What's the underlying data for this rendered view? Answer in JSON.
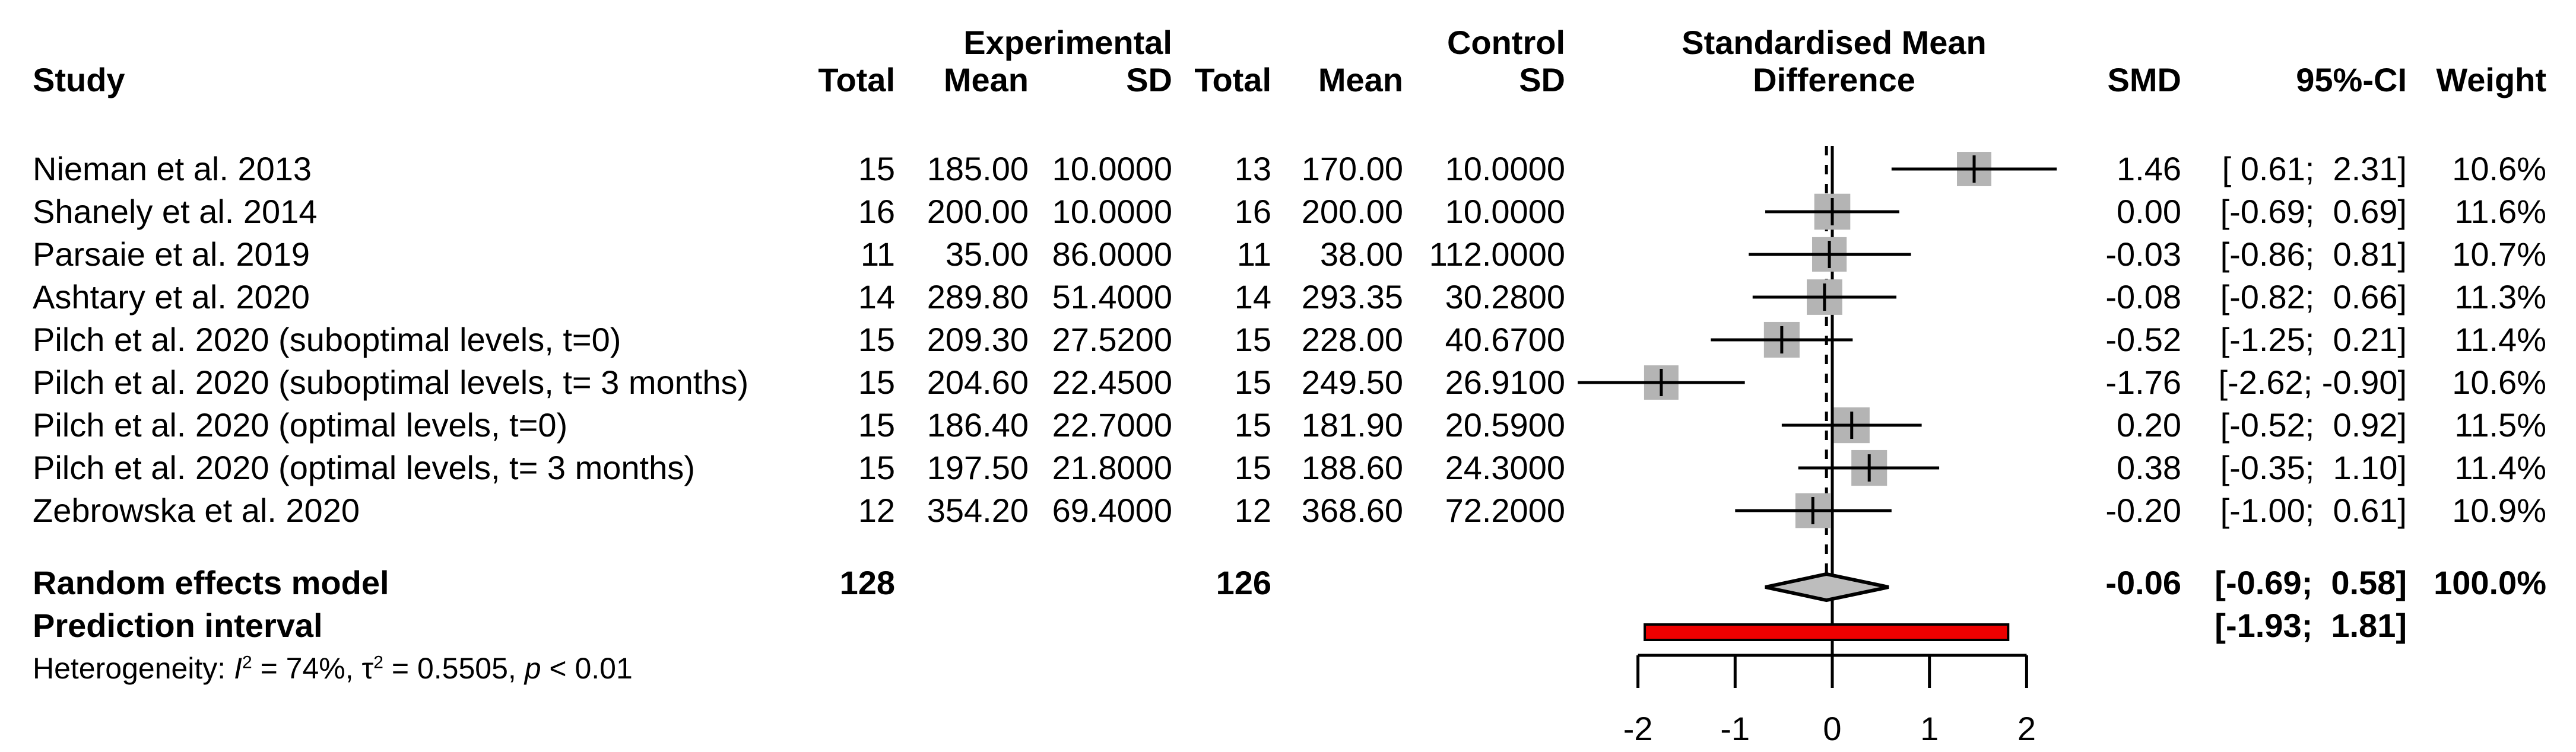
{
  "header": {
    "study": "Study",
    "experimental": "Experimental",
    "control": "Control",
    "exp_total": "Total",
    "exp_mean": "Mean",
    "exp_sd": "SD",
    "ctrl_total": "Total",
    "ctrl_mean": "Mean",
    "ctrl_sd": "SD",
    "plot_title_line1": "Standardised Mean",
    "plot_title_line2": "Difference",
    "smd": "SMD",
    "ci": "95%-CI",
    "weight": "Weight"
  },
  "studies": [
    {
      "name": "Nieman et al. 2013",
      "e_total": "15",
      "e_mean": "185.00",
      "e_sd": "10.0000",
      "c_total": "13",
      "c_mean": "170.00",
      "c_sd": "10.0000",
      "smd": "1.46",
      "ci": "[ 0.61;  2.31]",
      "weight": "10.6%"
    },
    {
      "name": "Shanely et al. 2014",
      "e_total": "16",
      "e_mean": "200.00",
      "e_sd": "10.0000",
      "c_total": "16",
      "c_mean": "200.00",
      "c_sd": "10.0000",
      "smd": "0.00",
      "ci": "[-0.69;  0.69]",
      "weight": "11.6%"
    },
    {
      "name": "Parsaie et al. 2019",
      "e_total": "11",
      "e_mean": "35.00",
      "e_sd": "86.0000",
      "c_total": "11",
      "c_mean": "38.00",
      "c_sd": "112.0000",
      "smd": "-0.03",
      "ci": "[-0.86;  0.81]",
      "weight": "10.7%"
    },
    {
      "name": "Ashtary et al. 2020",
      "e_total": "14",
      "e_mean": "289.80",
      "e_sd": "51.4000",
      "c_total": "14",
      "c_mean": "293.35",
      "c_sd": "30.2800",
      "smd": "-0.08",
      "ci": "[-0.82;  0.66]",
      "weight": "11.3%"
    },
    {
      "name": "Pilch et al. 2020 (suboptimal levels, t=0)",
      "e_total": "15",
      "e_mean": "209.30",
      "e_sd": "27.5200",
      "c_total": "15",
      "c_mean": "228.00",
      "c_sd": "40.6700",
      "smd": "-0.52",
      "ci": "[-1.25;  0.21]",
      "weight": "11.4%"
    },
    {
      "name": "Pilch et al. 2020 (suboptimal levels, t= 3 months)",
      "e_total": "15",
      "e_mean": "204.60",
      "e_sd": "22.4500",
      "c_total": "15",
      "c_mean": "249.50",
      "c_sd": "26.9100",
      "smd": "-1.76",
      "ci": "[-2.62; -0.90]",
      "weight": "10.6%"
    },
    {
      "name": "Pilch et al. 2020 (optimal levels, t=0)",
      "e_total": "15",
      "e_mean": "186.40",
      "e_sd": "22.7000",
      "c_total": "15",
      "c_mean": "181.90",
      "c_sd": "20.5900",
      "smd": "0.20",
      "ci": "[-0.52;  0.92]",
      "weight": "11.5%"
    },
    {
      "name": "Pilch et al. 2020 (optimal levels, t= 3 months)",
      "e_total": "15",
      "e_mean": "197.50",
      "e_sd": "21.8000",
      "c_total": "15",
      "c_mean": "188.60",
      "c_sd": "24.3000",
      "smd": "0.38",
      "ci": "[-0.35;  1.10]",
      "weight": "11.4%"
    },
    {
      "name": "Zebrowska et al. 2020",
      "e_total": "12",
      "e_mean": "354.20",
      "e_sd": "69.4000",
      "c_total": "12",
      "c_mean": "368.60",
      "c_sd": "72.2000",
      "smd": "-0.20",
      "ci": "[-1.00;  0.61]",
      "weight": "10.9%"
    }
  ],
  "summary": {
    "random_label": "Random effects model",
    "random_e_total": "128",
    "random_c_total": "126",
    "random_smd": "-0.06",
    "random_ci": "[-0.69;  0.58]",
    "random_weight": "100.0%",
    "prediction_label": "Prediction interval",
    "prediction_ci": "[-1.93;  1.81]",
    "heterogeneity_parts": [
      {
        "t": "Heterogeneity: "
      },
      {
        "t": "I",
        "s": "i"
      },
      {
        "t": "2",
        "s": "sup"
      },
      {
        "t": " = 74%, "
      },
      {
        "t": "τ"
      },
      {
        "t": "2",
        "s": "sup"
      },
      {
        "t": " = 0.5505, "
      },
      {
        "t": "p",
        "s": "i"
      },
      {
        "t": " < 0.01"
      }
    ]
  },
  "colors": {
    "square": "#b4b4b4",
    "diamond_fill": "#bdbdbd",
    "prediction_bar": "#ee0000",
    "line": "#000000"
  },
  "chart_data": {
    "type": "forest",
    "title": "Standardised Mean Difference",
    "x_axis": {
      "tick_vals": [
        -2,
        -1,
        0,
        1,
        2
      ],
      "tick_labels": [
        "-2",
        "-1",
        "0",
        "1",
        "2"
      ],
      "reference_line": 0,
      "random_effects_line": -0.06
    },
    "studies": [
      {
        "label": "Nieman et al. 2013",
        "n_exp": 15,
        "mean_exp": 185.0,
        "sd_exp": 10.0,
        "n_ctrl": 13,
        "mean_ctrl": 170.0,
        "sd_ctrl": 10.0,
        "smd": 1.46,
        "ci": [
          0.61,
          2.31
        ],
        "weight_pct": 10.6
      },
      {
        "label": "Shanely et al. 2014",
        "n_exp": 16,
        "mean_exp": 200.0,
        "sd_exp": 10.0,
        "n_ctrl": 16,
        "mean_ctrl": 200.0,
        "sd_ctrl": 10.0,
        "smd": 0.0,
        "ci": [
          -0.69,
          0.69
        ],
        "weight_pct": 11.6
      },
      {
        "label": "Parsaie et al. 2019",
        "n_exp": 11,
        "mean_exp": 35.0,
        "sd_exp": 86.0,
        "n_ctrl": 11,
        "mean_ctrl": 38.0,
        "sd_ctrl": 112.0,
        "smd": -0.03,
        "ci": [
          -0.86,
          0.81
        ],
        "weight_pct": 10.7
      },
      {
        "label": "Ashtary et al. 2020",
        "n_exp": 14,
        "mean_exp": 289.8,
        "sd_exp": 51.4,
        "n_ctrl": 14,
        "mean_ctrl": 293.35,
        "sd_ctrl": 30.28,
        "smd": -0.08,
        "ci": [
          -0.82,
          0.66
        ],
        "weight_pct": 11.3
      },
      {
        "label": "Pilch et al. 2020 (suboptimal levels, t=0)",
        "n_exp": 15,
        "mean_exp": 209.3,
        "sd_exp": 27.52,
        "n_ctrl": 15,
        "mean_ctrl": 228.0,
        "sd_ctrl": 40.67,
        "smd": -0.52,
        "ci": [
          -1.25,
          0.21
        ],
        "weight_pct": 11.4
      },
      {
        "label": "Pilch et al. 2020 (suboptimal levels, t= 3 months)",
        "n_exp": 15,
        "mean_exp": 204.6,
        "sd_exp": 22.45,
        "n_ctrl": 15,
        "mean_ctrl": 249.5,
        "sd_ctrl": 26.91,
        "smd": -1.76,
        "ci": [
          -2.62,
          -0.9
        ],
        "weight_pct": 10.6
      },
      {
        "label": "Pilch et al. 2020 (optimal levels, t=0)",
        "n_exp": 15,
        "mean_exp": 186.4,
        "sd_exp": 22.7,
        "n_ctrl": 15,
        "mean_ctrl": 181.9,
        "sd_ctrl": 20.59,
        "smd": 0.2,
        "ci": [
          -0.52,
          0.92
        ],
        "weight_pct": 11.5
      },
      {
        "label": "Pilch et al. 2020 (optimal levels, t= 3 months)",
        "n_exp": 15,
        "mean_exp": 197.5,
        "sd_exp": 21.8,
        "n_ctrl": 15,
        "mean_ctrl": 188.6,
        "sd_ctrl": 24.3,
        "smd": 0.38,
        "ci": [
          -0.35,
          1.1
        ],
        "weight_pct": 11.4
      },
      {
        "label": "Zebrowska et al. 2020",
        "n_exp": 12,
        "mean_exp": 354.2,
        "sd_exp": 69.4,
        "n_ctrl": 12,
        "mean_ctrl": 368.6,
        "sd_ctrl": 72.2,
        "smd": -0.2,
        "ci": [
          -1.0,
          0.61
        ],
        "weight_pct": 10.9
      }
    ],
    "summary": {
      "label": "Random effects model",
      "n_exp_total": 128,
      "n_ctrl_total": 126,
      "smd": -0.06,
      "ci": [
        -0.69,
        0.58
      ],
      "weight_pct": 100.0
    },
    "prediction_interval": [
      -1.93,
      1.81
    ],
    "heterogeneity": {
      "I2_pct": 74,
      "tau2": 0.5505,
      "p": "< 0.01"
    }
  }
}
